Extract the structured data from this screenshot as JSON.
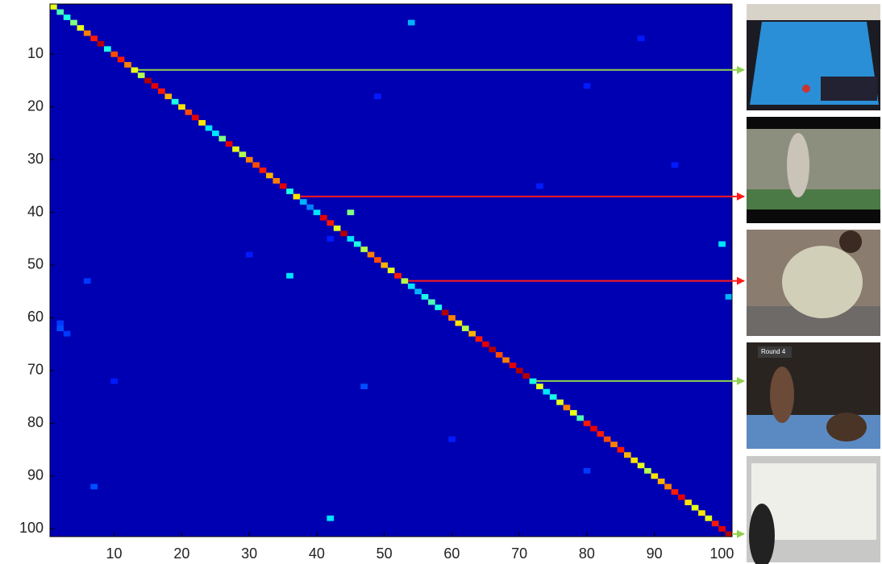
{
  "chart_data": {
    "type": "heatmap",
    "colormap": "jet",
    "clim": [
      0,
      1
    ],
    "xlim": [
      0.5,
      101.5
    ],
    "ylim": [
      0.5,
      101.5
    ],
    "y_reversed": true,
    "xticks": [
      10,
      20,
      30,
      40,
      50,
      60,
      70,
      80,
      90,
      100
    ],
    "yticks": [
      10,
      20,
      30,
      40,
      50,
      60,
      70,
      80,
      90,
      100
    ],
    "background_value": 0.05,
    "diagonal": [
      0.6,
      0.45,
      0.4,
      0.5,
      0.6,
      0.75,
      0.85,
      0.95,
      0.4,
      0.8,
      0.85,
      0.75,
      0.6,
      0.55,
      0.95,
      0.9,
      0.85,
      0.7,
      0.4,
      0.65,
      0.8,
      0.9,
      0.65,
      0.35,
      0.35,
      0.5,
      0.9,
      0.6,
      0.55,
      0.75,
      0.8,
      0.85,
      0.7,
      0.75,
      0.9,
      0.4,
      0.65,
      0.3,
      0.25,
      0.35,
      0.9,
      0.85,
      0.6,
      0.95,
      0.35,
      0.4,
      0.55,
      0.75,
      0.8,
      0.7,
      0.6,
      0.85,
      0.55,
      0.35,
      0.3,
      0.4,
      0.45,
      0.4,
      0.95,
      0.75,
      0.65,
      0.55,
      0.7,
      0.85,
      0.9,
      0.95,
      0.8,
      0.75,
      0.9,
      0.95,
      0.95,
      0.4,
      0.6,
      0.35,
      0.4,
      0.6,
      0.75,
      0.6,
      0.45,
      0.85,
      0.9,
      0.85,
      0.8,
      0.75,
      0.85,
      0.7,
      0.65,
      0.6,
      0.55,
      0.65,
      0.7,
      0.75,
      0.85,
      0.9,
      0.65,
      0.6,
      0.65,
      0.6,
      0.85,
      0.9,
      0.95
    ],
    "off_diagonal": [
      {
        "x": 45,
        "y": 40,
        "value": 0.5
      },
      {
        "x": 100,
        "y": 46,
        "value": 0.35
      },
      {
        "x": 42,
        "y": 98,
        "value": 0.35
      },
      {
        "x": 36,
        "y": 52,
        "value": 0.35
      },
      {
        "x": 54,
        "y": 4,
        "value": 0.3
      },
      {
        "x": 101,
        "y": 56,
        "value": 0.3
      },
      {
        "x": 2,
        "y": 61,
        "value": 0.18
      },
      {
        "x": 2,
        "y": 62,
        "value": 0.2
      },
      {
        "x": 3,
        "y": 63,
        "value": 0.18
      },
      {
        "x": 6,
        "y": 53,
        "value": 0.18
      },
      {
        "x": 7,
        "y": 92,
        "value": 0.2
      },
      {
        "x": 10,
        "y": 72,
        "value": 0.15
      },
      {
        "x": 47,
        "y": 73,
        "value": 0.2
      },
      {
        "x": 88,
        "y": 7,
        "value": 0.15
      },
      {
        "x": 60,
        "y": 83,
        "value": 0.15
      },
      {
        "x": 80,
        "y": 16,
        "value": 0.15
      },
      {
        "x": 80,
        "y": 89,
        "value": 0.18
      },
      {
        "x": 42,
        "y": 45,
        "value": 0.15
      },
      {
        "x": 49,
        "y": 18,
        "value": 0.15
      },
      {
        "x": 73,
        "y": 35,
        "value": 0.15
      },
      {
        "x": 30,
        "y": 48,
        "value": 0.15
      },
      {
        "x": 93,
        "y": 31,
        "value": 0.15
      }
    ],
    "highlights": [
      {
        "class": 13,
        "color": "#8fd14f"
      },
      {
        "class": 37,
        "color": "#ff1a1a"
      },
      {
        "class": 53,
        "color": "#ff1a1a"
      },
      {
        "class": 72,
        "color": "#8fd14f"
      },
      {
        "class": 101,
        "color": "#8fd14f"
      }
    ]
  }
}
